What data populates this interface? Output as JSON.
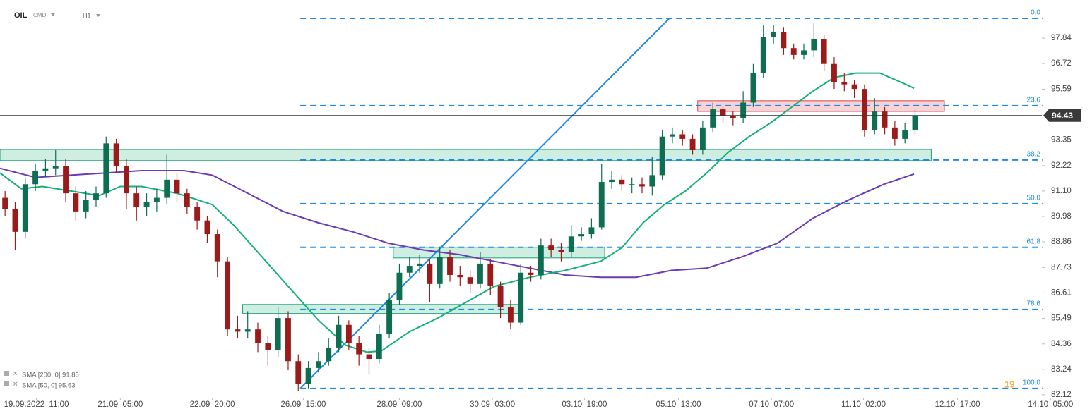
{
  "chart_data": {
    "type": "candlestick",
    "symbol": "OIL",
    "market": "CMD",
    "interval": "H1",
    "x": [
      0,
      1,
      2,
      3,
      4,
      5,
      6,
      7,
      8,
      9,
      10,
      11,
      12,
      13,
      14,
      15,
      16,
      17,
      18,
      19,
      20,
      21,
      22,
      23,
      24,
      25,
      26,
      27,
      28,
      29,
      30,
      31,
      32,
      33,
      34,
      35,
      36,
      37,
      38,
      39,
      40,
      41,
      42,
      43,
      44,
      45,
      46,
      47,
      48,
      49,
      50,
      51,
      52,
      53,
      54,
      55,
      56,
      57,
      58,
      59,
      60,
      61,
      62,
      63,
      64,
      65,
      66,
      67,
      68,
      69,
      70,
      71,
      72,
      73,
      74,
      75,
      76,
      77,
      78,
      79,
      80,
      81,
      82,
      83,
      84,
      85,
      86,
      87,
      88,
      89,
      90
    ],
    "open": [
      90.8,
      90.3,
      89.3,
      91.4,
      92.0,
      92.1,
      92.2,
      91.0,
      90.2,
      90.7,
      91.0,
      93.2,
      92.2,
      91.0,
      90.4,
      90.6,
      90.8,
      91.6,
      91.0,
      90.4,
      89.8,
      89.2,
      88.0,
      85.0,
      84.9,
      85.0,
      84.4,
      84.1,
      85.5,
      83.6,
      82.6,
      83.3,
      83.6,
      84.2,
      85.2,
      84.4,
      83.9,
      83.7,
      84.8,
      86.3,
      87.5,
      87.8,
      87.9,
      87.0,
      88.2,
      87.4,
      87.3,
      87.0,
      87.9,
      86.9,
      86.0,
      85.3,
      87.5,
      87.4,
      88.7,
      88.5,
      88.4,
      89.1,
      89.2,
      89.5,
      91.5,
      91.6,
      91.4,
      91.4,
      91.3,
      91.8,
      93.5,
      93.6,
      93.4,
      92.9,
      93.9,
      94.7,
      94.4,
      94.3,
      95.0,
      96.3,
      97.9,
      98.1,
      97.4,
      97.1,
      97.3,
      97.8,
      96.7,
      95.9,
      95.8,
      95.6,
      93.8,
      94.6,
      93.9,
      93.4,
      93.8
    ],
    "high": [
      91.1,
      90.6,
      91.7,
      92.3,
      92.5,
      92.9,
      92.5,
      91.3,
      91.1,
      91.3,
      93.5,
      93.4,
      92.5,
      91.3,
      91.0,
      91.2,
      92.7,
      91.9,
      91.2,
      90.6,
      90.0,
      89.4,
      88.2,
      85.6,
      85.8,
      85.3,
      84.7,
      86.0,
      85.8,
      83.9,
      83.6,
      84.0,
      84.6,
      85.6,
      85.4,
      84.7,
      84.2,
      85.2,
      86.6,
      87.9,
      88.2,
      88.3,
      88.1,
      88.6,
      88.5,
      87.8,
      87.6,
      88.4,
      88.1,
      87.1,
      86.3,
      87.9,
      87.8,
      89.0,
      89.0,
      88.8,
      89.6,
      89.5,
      89.9,
      92.3,
      92.0,
      91.8,
      91.7,
      91.7,
      92.6,
      93.8,
      93.9,
      93.8,
      93.6,
      94.2,
      95.0,
      94.8,
      94.6,
      95.5,
      96.7,
      98.4,
      98.4,
      98.3,
      97.6,
      97.6,
      98.5,
      98.0,
      97.0,
      96.3,
      96.0,
      95.8,
      95.2,
      94.8,
      94.2,
      94.1,
      94.7
    ],
    "low": [
      90.0,
      88.5,
      89.0,
      91.1,
      91.7,
      91.8,
      90.6,
      89.8,
      89.9,
      90.4,
      90.8,
      91.9,
      90.3,
      89.8,
      90.0,
      90.2,
      90.5,
      90.6,
      90.1,
      89.4,
      88.8,
      87.3,
      84.7,
      84.6,
      84.6,
      84.0,
      83.4,
      83.8,
      83.2,
      82.3,
      82.4,
      83.1,
      83.4,
      84.0,
      84.1,
      83.4,
      83.0,
      83.5,
      84.6,
      86.1,
      87.3,
      87.5,
      86.2,
      86.8,
      87.1,
      86.9,
      86.6,
      86.8,
      86.5,
      85.5,
      85.0,
      85.2,
      87.1,
      87.2,
      88.2,
      88.0,
      88.2,
      88.9,
      89.0,
      89.4,
      91.2,
      91.1,
      91.0,
      91.0,
      90.9,
      91.6,
      93.2,
      93.1,
      92.7,
      92.7,
      93.7,
      94.1,
      94.0,
      94.1,
      94.8,
      96.1,
      97.6,
      97.1,
      96.9,
      96.9,
      97.0,
      96.4,
      95.6,
      95.5,
      95.2,
      93.5,
      93.6,
      93.6,
      93.1,
      93.2,
      93.6
    ],
    "close": [
      90.3,
      89.3,
      91.4,
      92.0,
      92.1,
      92.2,
      91.0,
      90.2,
      90.7,
      91.0,
      93.2,
      92.2,
      91.0,
      90.4,
      90.6,
      90.8,
      91.6,
      91.0,
      90.4,
      89.8,
      89.2,
      88.0,
      85.0,
      84.9,
      85.0,
      84.4,
      84.1,
      85.5,
      83.6,
      82.6,
      83.3,
      83.6,
      84.2,
      85.2,
      84.4,
      83.9,
      83.7,
      84.8,
      86.3,
      87.5,
      87.8,
      87.9,
      87.0,
      88.2,
      87.4,
      87.3,
      87.0,
      87.9,
      86.9,
      86.0,
      85.3,
      87.5,
      87.4,
      88.7,
      88.5,
      88.4,
      89.1,
      89.2,
      89.5,
      91.5,
      91.6,
      91.4,
      91.4,
      91.3,
      91.8,
      93.5,
      93.6,
      93.4,
      92.9,
      93.9,
      94.7,
      94.4,
      94.3,
      95.0,
      96.3,
      97.9,
      98.1,
      97.4,
      97.1,
      97.3,
      97.8,
      96.7,
      95.9,
      95.8,
      95.6,
      93.8,
      94.6,
      93.9,
      93.4,
      93.8,
      94.43
    ],
    "up_color": "#0e6e52",
    "down_color": "#9b1b1b",
    "series": [
      {
        "name": "SMA [200, 0] 91.85",
        "color": "#6a3bb5",
        "x": [
          -0.5,
          3.0,
          6.5,
          10.0,
          13.5,
          17.7,
          20.5,
          24.0,
          27.5,
          31.0,
          34.4,
          37.9,
          41.4,
          44.9,
          48.4,
          51.9,
          55.4,
          58.9,
          62.4,
          65.9,
          69.4,
          72.9,
          76.4,
          79.9,
          83.4,
          86.9,
          89.9
        ],
        "values": [
          92.1,
          91.7,
          91.8,
          91.9,
          92.0,
          92.0,
          91.8,
          91.0,
          90.2,
          89.7,
          89.3,
          88.8,
          88.5,
          88.3,
          88.0,
          87.7,
          87.4,
          87.3,
          87.3,
          87.6,
          87.7,
          88.2,
          88.8,
          89.9,
          90.7,
          91.4,
          91.85
        ]
      },
      {
        "name": "SMA [50, 0] 95.63",
        "color": "#14b07a",
        "x": [
          -0.5,
          1.6,
          3.7,
          6.5,
          9.3,
          11.4,
          13.5,
          17.0,
          20.5,
          22.6,
          25.4,
          28.2,
          31.0,
          33.7,
          35.8,
          37.2,
          40.0,
          42.8,
          45.6,
          48.4,
          51.9,
          55.4,
          58.9,
          61.0,
          63.1,
          65.2,
          67.3,
          69.4,
          71.5,
          73.6,
          75.7,
          77.8,
          79.9,
          82.0,
          84.1,
          86.5,
          88.6,
          89.9
        ],
        "values": [
          91.9,
          91.2,
          91.3,
          91.1,
          90.9,
          91.3,
          91.3,
          91.0,
          90.5,
          89.6,
          88.2,
          86.8,
          85.4,
          84.3,
          84.0,
          84.05,
          84.9,
          85.5,
          86.2,
          86.9,
          87.3,
          87.6,
          88.0,
          88.6,
          89.7,
          90.5,
          91.1,
          91.9,
          92.8,
          93.5,
          94.1,
          94.8,
          95.5,
          96.1,
          96.3,
          96.3,
          95.9,
          95.63
        ]
      }
    ],
    "fib_levels": [
      {
        "price": 98.71,
        "label": "0.0"
      },
      {
        "price": 94.86,
        "label": "23.6"
      },
      {
        "price": 92.47,
        "label": "38.2"
      },
      {
        "price": 90.54,
        "label": "50.0"
      },
      {
        "price": 88.62,
        "label": "61.8"
      },
      {
        "price": 85.88,
        "label": "78.6"
      },
      {
        "price": 82.4,
        "label": "100.0"
      }
    ],
    "fib_color": "#1e88e5",
    "fib_x": [
      29.2,
      102.6
    ],
    "zones": [
      {
        "x": [
          -0.5,
          91.6
        ],
        "y": [
          92.44,
          92.93
        ],
        "fill": "#cdeee0",
        "stroke": "#1fa07a"
      },
      {
        "x": [
          38.4,
          59.3
        ],
        "y": [
          88.15,
          88.62
        ],
        "fill": "#cdeee0",
        "stroke": "#1fa07a"
      },
      {
        "x": [
          23.5,
          50.9
        ],
        "y": [
          85.7,
          86.1
        ],
        "fill": "#cdeee0",
        "stroke": "#1fa07a"
      },
      {
        "x": [
          68.5,
          92.9
        ],
        "y": [
          94.61,
          95.08
        ],
        "fill": "#f6d3d6",
        "stroke": "#e0404a"
      }
    ],
    "trendline": {
      "x": [
        29.2,
        65.7
      ],
      "y": [
        82.4,
        98.71
      ],
      "color": "#1e88e5"
    },
    "last_price": 94.43,
    "watermark": "19",
    "xlim": [
      -0.5,
      107.5
    ],
    "ylim": [
      81.96,
      99.52
    ],
    "xticks": [
      {
        "value": 3.1,
        "label": "19.09.2022  11:00"
      },
      {
        "value": 11.4,
        "label": "21.09  05:00"
      },
      {
        "value": 20.5,
        "label": "22.09  20:00"
      },
      {
        "value": 29.5,
        "label": "26.09  15:00"
      },
      {
        "value": 39.0,
        "label": "28.09  09:00"
      },
      {
        "value": 48.2,
        "label": "30.09  03:00"
      },
      {
        "value": 57.3,
        "label": "03.10  19:00"
      },
      {
        "value": 66.6,
        "label": "05.10  13:00"
      },
      {
        "value": 75.8,
        "label": "07.10  07:00"
      },
      {
        "value": 84.9,
        "label": "11.10  02:00"
      },
      {
        "value": 94.2,
        "label": "12.10  17:00"
      },
      {
        "value": 103.4,
        "label": "14.10  05:00"
      }
    ],
    "yticks": [
      82.12,
      83.24,
      84.36,
      85.49,
      86.61,
      87.73,
      88.86,
      89.98,
      {
        "value": 91.1,
        "label": "91.10"
      },
      92.22,
      93.35,
      95.59,
      96.72,
      97.84
    ]
  }
}
